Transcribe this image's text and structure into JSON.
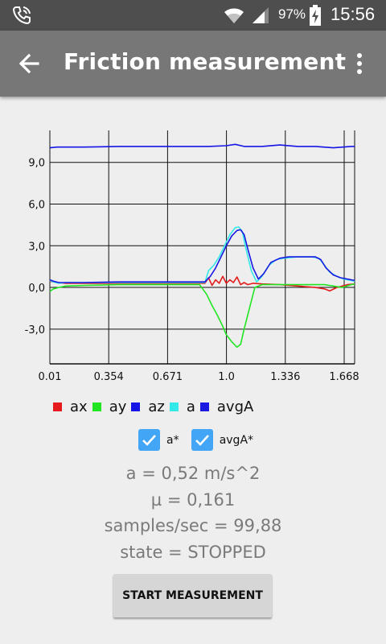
{
  "status_bar": {
    "battery_percent": "97%",
    "time": "15:56",
    "icons": [
      "phone-call-icon",
      "wifi-icon",
      "signal-icon",
      "battery-charging-icon"
    ]
  },
  "app_bar": {
    "title": "Friction measurement",
    "back_icon": "arrow-back-icon",
    "menu_icon": "more-vert-icon"
  },
  "colors": {
    "status_bar": "#4e4e4e",
    "app_bar": "#777777",
    "background": "#eeeeee",
    "checkbox": "#42a5f5",
    "ax": "#e41a1c",
    "ay": "#22e522",
    "az": "#1515e6",
    "a": "#33e8e8",
    "avgA": "#1a1ae0"
  },
  "chart_data": {
    "type": "line",
    "x_tick_labels": [
      "0.01",
      "0.354",
      "0.671",
      "1.0",
      "1.336",
      "1.668"
    ],
    "y_tick_labels": [
      "9,0",
      "6,0",
      "3,0",
      "0,0",
      "-3,0"
    ],
    "y_tick_values": [
      9,
      6,
      3,
      0,
      -3
    ],
    "xlim": [
      0.01,
      1.72
    ],
    "ylim": [
      -5.5,
      11.3
    ],
    "grid": true,
    "legend_placement": "bottom",
    "series": [
      {
        "name": "ax",
        "color": "#e41a1c",
        "x": [
          0.01,
          0.05,
          0.1,
          0.3,
          0.6,
          0.88,
          0.9,
          0.92,
          0.94,
          0.96,
          0.98,
          1.0,
          1.02,
          1.04,
          1.06,
          1.08,
          1.1,
          1.12,
          1.15,
          1.2,
          1.3,
          1.4,
          1.5,
          1.55,
          1.58,
          1.62,
          1.68,
          1.72
        ],
        "y": [
          0.45,
          0.35,
          0.3,
          0.3,
          0.3,
          0.3,
          0.7,
          0.15,
          0.55,
          0.3,
          0.8,
          0.3,
          0.55,
          0.35,
          0.75,
          0.2,
          0.35,
          0.2,
          0.3,
          0.25,
          0.2,
          0.1,
          0.0,
          -0.1,
          -0.25,
          0.0,
          0.2,
          0.25
        ]
      },
      {
        "name": "ay",
        "color": "#22e522",
        "x": [
          0.01,
          0.03,
          0.06,
          0.1,
          0.2,
          0.4,
          0.6,
          0.85,
          0.89,
          0.92,
          0.95,
          0.98,
          1.0,
          1.03,
          1.06,
          1.08,
          1.1,
          1.13,
          1.16,
          1.2,
          1.3,
          1.4,
          1.5,
          1.55,
          1.6,
          1.65,
          1.7,
          1.72
        ],
        "y": [
          -0.3,
          -0.1,
          0.0,
          0.1,
          0.15,
          0.2,
          0.2,
          0.2,
          -0.5,
          -1.3,
          -2.0,
          -2.8,
          -3.4,
          -3.9,
          -4.3,
          -4.1,
          -3.0,
          -1.5,
          0.0,
          0.2,
          0.2,
          0.2,
          0.2,
          0.2,
          0.1,
          0.0,
          0.2,
          0.25
        ]
      },
      {
        "name": "az",
        "color": "#1515e6",
        "x": [
          0.01,
          0.05,
          0.1,
          0.2,
          0.4,
          0.6,
          0.8,
          0.9,
          1.0,
          1.05,
          1.1,
          1.2,
          1.3,
          1.4,
          1.5,
          1.6,
          1.7,
          1.72
        ],
        "y": [
          10.05,
          10.1,
          10.1,
          10.1,
          10.15,
          10.15,
          10.15,
          10.15,
          10.2,
          10.3,
          10.15,
          10.15,
          10.25,
          10.15,
          10.15,
          10.05,
          10.15,
          10.15
        ]
      },
      {
        "name": "a",
        "color": "#33e8e8",
        "x": [
          0.01,
          0.03,
          0.06,
          0.1,
          0.2,
          0.4,
          0.6,
          0.88,
          0.9,
          0.93,
          0.96,
          0.99,
          1.02,
          1.05,
          1.07,
          1.09,
          1.11,
          1.14,
          1.17,
          1.2,
          1.24,
          1.28,
          1.32,
          1.36,
          1.4,
          1.44,
          1.48,
          1.52,
          1.55,
          1.58,
          1.62,
          1.66,
          1.7,
          1.72
        ],
        "y": [
          0.5,
          0.4,
          0.3,
          0.35,
          0.35,
          0.35,
          0.35,
          0.35,
          1.2,
          1.6,
          2.2,
          3.0,
          3.8,
          4.3,
          4.35,
          4.0,
          2.8,
          1.2,
          0.4,
          0.8,
          1.6,
          2.0,
          2.1,
          2.15,
          2.2,
          2.2,
          2.2,
          2.1,
          1.6,
          1.1,
          0.8,
          0.6,
          0.5,
          0.45
        ]
      },
      {
        "name": "avgA",
        "color": "#1a1ae0",
        "x": [
          0.01,
          0.03,
          0.06,
          0.1,
          0.2,
          0.4,
          0.6,
          0.88,
          0.91,
          0.94,
          0.97,
          1.0,
          1.03,
          1.06,
          1.08,
          1.1,
          1.12,
          1.15,
          1.18,
          1.21,
          1.25,
          1.3,
          1.35,
          1.4,
          1.45,
          1.5,
          1.53,
          1.56,
          1.6,
          1.64,
          1.68,
          1.72
        ],
        "y": [
          0.55,
          0.45,
          0.35,
          0.35,
          0.35,
          0.4,
          0.4,
          0.4,
          0.8,
          1.4,
          2.2,
          3.0,
          3.7,
          4.1,
          4.15,
          3.8,
          2.8,
          1.4,
          0.6,
          1.0,
          1.8,
          2.1,
          2.2,
          2.2,
          2.2,
          2.2,
          2.0,
          1.4,
          0.9,
          0.7,
          0.6,
          0.5
        ]
      }
    ]
  },
  "checkboxes": [
    {
      "label": "a*",
      "checked": true
    },
    {
      "label": "avgA*",
      "checked": true
    }
  ],
  "stats": {
    "a": "a = 0,52 m/s^2",
    "mu": "µ = 0,161",
    "samples": "samples/sec = 99,88",
    "state": "state = STOPPED"
  },
  "button": {
    "label": "START MEASUREMENT"
  }
}
